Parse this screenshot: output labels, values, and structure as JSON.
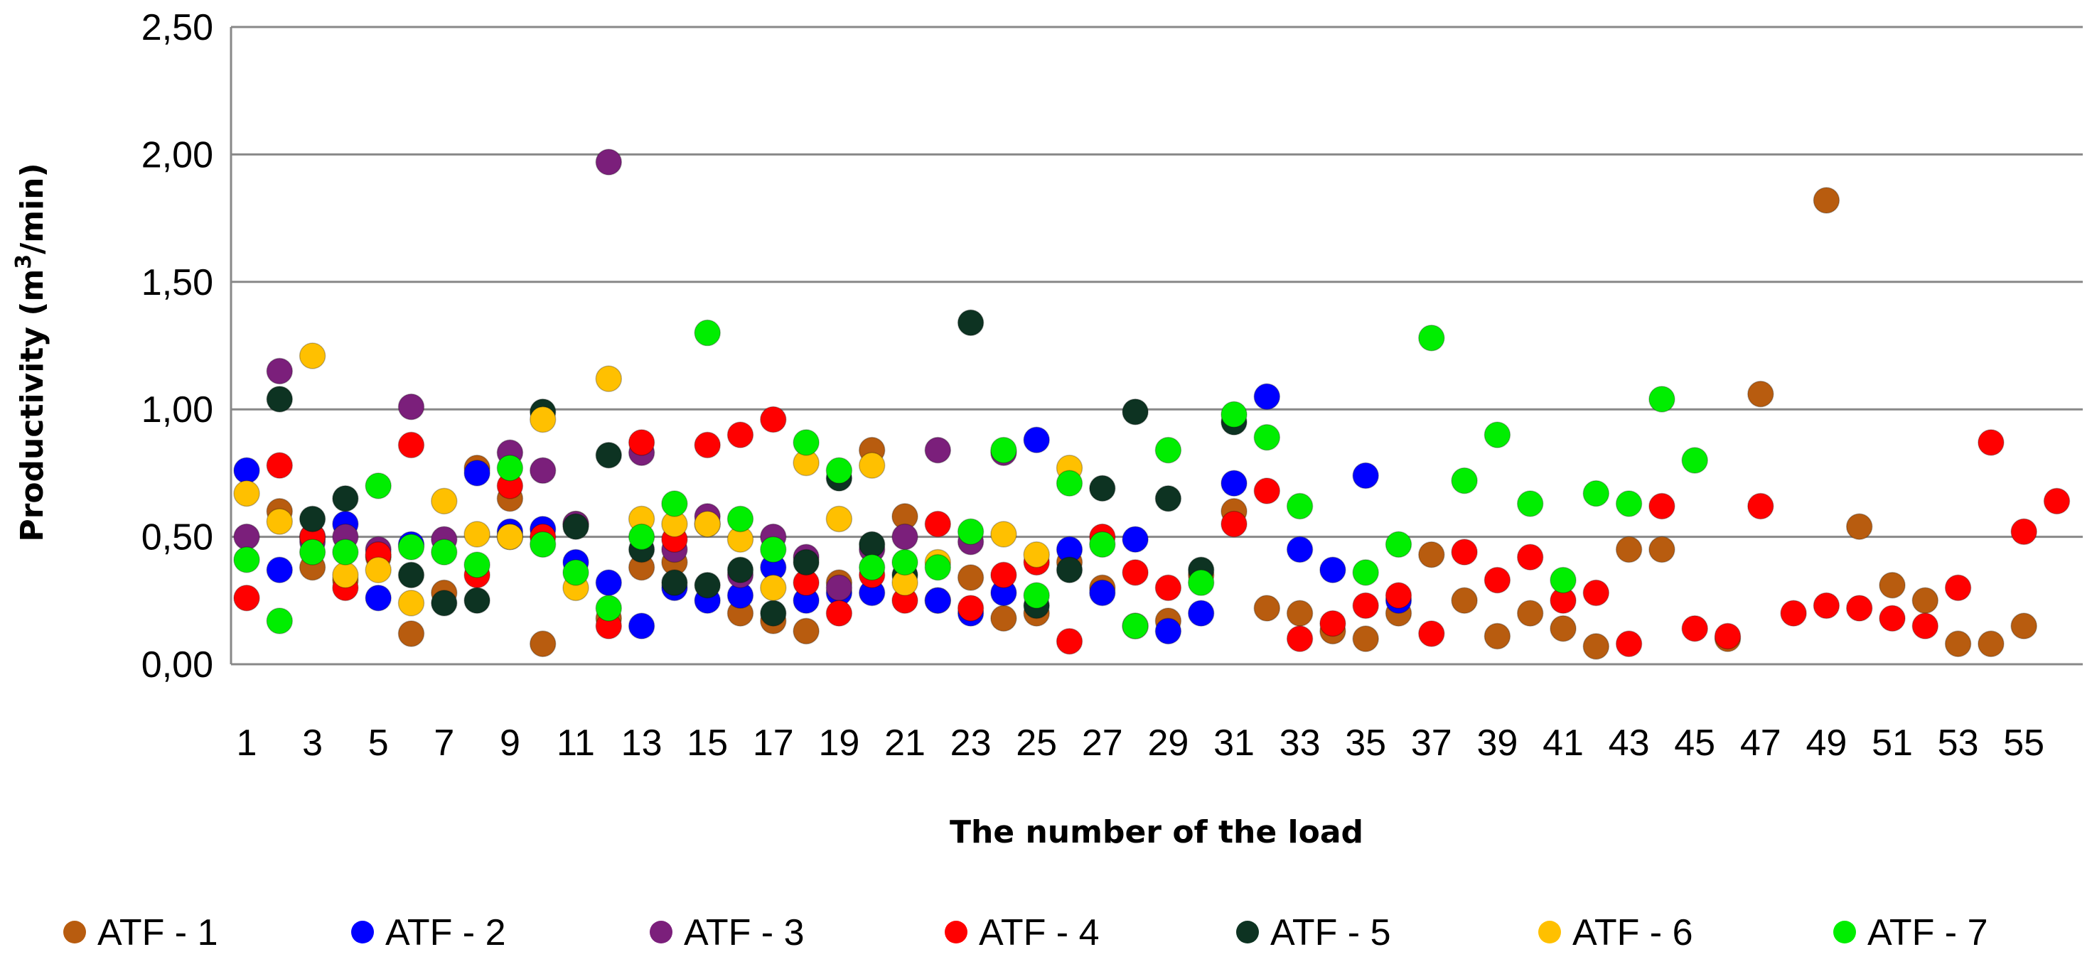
{
  "chart_data": {
    "type": "scatter",
    "title": "",
    "xlabel": "The number of the load",
    "ylabel": "Productivity (m3/min)",
    "ylabel_parts": {
      "pre": "Productivity (m",
      "sup": "3",
      "post": "/min)"
    },
    "xlim": [
      1,
      56
    ],
    "ylim": [
      0,
      2.5
    ],
    "x_ticks": [
      "1",
      "3",
      "5",
      "7",
      "9",
      "11",
      "13",
      "15",
      "17",
      "19",
      "21",
      "23",
      "25",
      "27",
      "29",
      "31",
      "33",
      "35",
      "37",
      "39",
      "41",
      "43",
      "45",
      "47",
      "49",
      "51",
      "53",
      "55"
    ],
    "y_ticks": [
      "0,00",
      "0,50",
      "1,00",
      "1,50",
      "2,00",
      "2,50"
    ],
    "grid": "horizontal",
    "legend_position": "bottom",
    "series": [
      {
        "name": "ATF - 1",
        "color": "#b85c0f",
        "points": [
          [
            2,
            0.6
          ],
          [
            3,
            0.38
          ],
          [
            4,
            0.33
          ],
          [
            5,
            0.42
          ],
          [
            6,
            0.12
          ],
          [
            7,
            0.28
          ],
          [
            8,
            0.77
          ],
          [
            9,
            0.65
          ],
          [
            10,
            0.08
          ],
          [
            11,
            0.55
          ],
          [
            12,
            0.18
          ],
          [
            13,
            0.38
          ],
          [
            14,
            0.4
          ],
          [
            15,
            0.55
          ],
          [
            16,
            0.2
          ],
          [
            17,
            0.17
          ],
          [
            18,
            0.13
          ],
          [
            19,
            0.32
          ],
          [
            20,
            0.84
          ],
          [
            21,
            0.58
          ],
          [
            22,
            0.25
          ],
          [
            23,
            0.34
          ],
          [
            24,
            0.18
          ],
          [
            25,
            0.2
          ],
          [
            26,
            0.4
          ],
          [
            27,
            0.3
          ],
          [
            28,
            0.15
          ],
          [
            29,
            0.17
          ],
          [
            30,
            0.35
          ],
          [
            31,
            0.6
          ],
          [
            32,
            0.22
          ],
          [
            33,
            0.2
          ],
          [
            34,
            0.13
          ],
          [
            35,
            0.1
          ],
          [
            36,
            0.2
          ],
          [
            37,
            0.43
          ],
          [
            38,
            0.25
          ],
          [
            39,
            0.11
          ],
          [
            40,
            0.2
          ],
          [
            41,
            0.14
          ],
          [
            42,
            0.07
          ],
          [
            43,
            0.45
          ],
          [
            44,
            0.45
          ],
          [
            46,
            0.1
          ],
          [
            47,
            1.06
          ],
          [
            49,
            1.82
          ],
          [
            50,
            0.54
          ],
          [
            51,
            0.31
          ],
          [
            52,
            0.25
          ],
          [
            53,
            0.08
          ],
          [
            54,
            0.08
          ],
          [
            55,
            0.15
          ]
        ]
      },
      {
        "name": "ATF - 2",
        "color": "#0000ff",
        "points": [
          [
            1,
            0.76
          ],
          [
            2,
            0.37
          ],
          [
            3,
            0.5
          ],
          [
            4,
            0.55
          ],
          [
            5,
            0.26
          ],
          [
            6,
            0.47
          ],
          [
            8,
            0.75
          ],
          [
            9,
            0.52
          ],
          [
            10,
            0.53
          ],
          [
            11,
            0.4
          ],
          [
            12,
            0.32
          ],
          [
            13,
            0.15
          ],
          [
            14,
            0.3
          ],
          [
            15,
            0.25
          ],
          [
            16,
            0.27
          ],
          [
            17,
            0.38
          ],
          [
            18,
            0.25
          ],
          [
            19,
            0.28
          ],
          [
            20,
            0.28
          ],
          [
            22,
            0.25
          ],
          [
            23,
            0.2
          ],
          [
            24,
            0.28
          ],
          [
            25,
            0.88
          ],
          [
            26,
            0.45
          ],
          [
            27,
            0.28
          ],
          [
            28,
            0.49
          ],
          [
            29,
            0.13
          ],
          [
            30,
            0.2
          ],
          [
            31,
            0.71
          ],
          [
            32,
            1.05
          ],
          [
            33,
            0.45
          ],
          [
            34,
            0.37
          ],
          [
            35,
            0.74
          ],
          [
            36,
            0.25
          ]
        ]
      },
      {
        "name": "ATF - 3",
        "color": "#7b1f7b",
        "points": [
          [
            1,
            0.5
          ],
          [
            2,
            1.15
          ],
          [
            3,
            0.48
          ],
          [
            4,
            0.5
          ],
          [
            5,
            0.45
          ],
          [
            6,
            1.01
          ],
          [
            7,
            0.49
          ],
          [
            9,
            0.83
          ],
          [
            10,
            0.76
          ],
          [
            11,
            0.55
          ],
          [
            12,
            1.97
          ],
          [
            13,
            0.83
          ],
          [
            14,
            0.45
          ],
          [
            15,
            0.58
          ],
          [
            16,
            0.35
          ],
          [
            17,
            0.5
          ],
          [
            18,
            0.42
          ],
          [
            19,
            0.3
          ],
          [
            20,
            0.45
          ],
          [
            21,
            0.5
          ],
          [
            22,
            0.84
          ],
          [
            23,
            0.48
          ],
          [
            24,
            0.83
          ]
        ]
      },
      {
        "name": "ATF - 4",
        "color": "#ff0000",
        "points": [
          [
            1,
            0.26
          ],
          [
            2,
            0.78
          ],
          [
            3,
            0.5
          ],
          [
            4,
            0.3
          ],
          [
            5,
            0.43
          ],
          [
            6,
            0.86
          ],
          [
            8,
            0.35
          ],
          [
            9,
            0.7
          ],
          [
            10,
            0.5
          ],
          [
            12,
            0.15
          ],
          [
            13,
            0.87
          ],
          [
            14,
            0.49
          ],
          [
            15,
            0.86
          ],
          [
            16,
            0.9
          ],
          [
            17,
            0.96
          ],
          [
            18,
            0.32
          ],
          [
            19,
            0.2
          ],
          [
            20,
            0.35
          ],
          [
            21,
            0.25
          ],
          [
            22,
            0.55
          ],
          [
            23,
            0.22
          ],
          [
            24,
            0.35
          ],
          [
            25,
            0.4
          ],
          [
            26,
            0.09
          ],
          [
            27,
            0.5
          ],
          [
            28,
            0.36
          ],
          [
            29,
            0.3
          ],
          [
            31,
            0.55
          ],
          [
            32,
            0.68
          ],
          [
            33,
            0.1
          ],
          [
            34,
            0.16
          ],
          [
            35,
            0.23
          ],
          [
            36,
            0.27
          ],
          [
            37,
            0.12
          ],
          [
            38,
            0.44
          ],
          [
            39,
            0.33
          ],
          [
            40,
            0.42
          ],
          [
            41,
            0.25
          ],
          [
            42,
            0.28
          ],
          [
            43,
            0.08
          ],
          [
            44,
            0.62
          ],
          [
            45,
            0.14
          ],
          [
            46,
            0.11
          ],
          [
            47,
            0.62
          ],
          [
            48,
            0.2
          ],
          [
            49,
            0.23
          ],
          [
            50,
            0.22
          ],
          [
            51,
            0.18
          ],
          [
            52,
            0.15
          ],
          [
            53,
            0.3
          ],
          [
            54,
            0.87
          ],
          [
            55,
            0.52
          ],
          [
            56,
            0.64
          ]
        ]
      },
      {
        "name": "ATF - 5",
        "color": "#0d3322",
        "points": [
          [
            2,
            1.04
          ],
          [
            3,
            0.57
          ],
          [
            4,
            0.65
          ],
          [
            6,
            0.35
          ],
          [
            7,
            0.24
          ],
          [
            8,
            0.25
          ],
          [
            9,
            0.5
          ],
          [
            10,
            0.99
          ],
          [
            11,
            0.54
          ],
          [
            12,
            0.82
          ],
          [
            13,
            0.45
          ],
          [
            14,
            0.32
          ],
          [
            15,
            0.31
          ],
          [
            16,
            0.37
          ],
          [
            17,
            0.2
          ],
          [
            18,
            0.4
          ],
          [
            19,
            0.73
          ],
          [
            20,
            0.47
          ],
          [
            21,
            0.35
          ],
          [
            23,
            1.34
          ],
          [
            25,
            0.23
          ],
          [
            26,
            0.37
          ],
          [
            27,
            0.69
          ],
          [
            28,
            0.99
          ],
          [
            29,
            0.65
          ],
          [
            30,
            0.37
          ],
          [
            31,
            0.95
          ]
        ]
      },
      {
        "name": "ATF - 6",
        "color": "#ffc000",
        "points": [
          [
            1,
            0.67
          ],
          [
            2,
            0.56
          ],
          [
            3,
            1.21
          ],
          [
            4,
            0.35
          ],
          [
            5,
            0.37
          ],
          [
            6,
            0.24
          ],
          [
            7,
            0.64
          ],
          [
            8,
            0.51
          ],
          [
            9,
            0.5
          ],
          [
            10,
            0.96
          ],
          [
            11,
            0.3
          ],
          [
            12,
            1.12
          ],
          [
            13,
            0.57
          ],
          [
            14,
            0.55
          ],
          [
            15,
            0.55
          ],
          [
            16,
            0.49
          ],
          [
            17,
            0.3
          ],
          [
            18,
            0.79
          ],
          [
            19,
            0.57
          ],
          [
            20,
            0.78
          ],
          [
            21,
            0.32
          ],
          [
            22,
            0.4
          ],
          [
            24,
            0.51
          ],
          [
            25,
            0.43
          ],
          [
            26,
            0.77
          ]
        ]
      },
      {
        "name": "ATF - 7",
        "color": "#00ee00",
        "points": [
          [
            1,
            0.41
          ],
          [
            2,
            0.17
          ],
          [
            3,
            0.44
          ],
          [
            4,
            0.44
          ],
          [
            5,
            0.7
          ],
          [
            6,
            0.46
          ],
          [
            7,
            0.44
          ],
          [
            8,
            0.39
          ],
          [
            9,
            0.77
          ],
          [
            10,
            0.47
          ],
          [
            11,
            0.36
          ],
          [
            12,
            0.22
          ],
          [
            13,
            0.5
          ],
          [
            14,
            0.63
          ],
          [
            15,
            1.3
          ],
          [
            16,
            0.57
          ],
          [
            17,
            0.45
          ],
          [
            18,
            0.87
          ],
          [
            19,
            0.76
          ],
          [
            20,
            0.38
          ],
          [
            21,
            0.4
          ],
          [
            22,
            0.38
          ],
          [
            23,
            0.52
          ],
          [
            24,
            0.84
          ],
          [
            25,
            0.27
          ],
          [
            26,
            0.71
          ],
          [
            27,
            0.47
          ],
          [
            28,
            0.15
          ],
          [
            29,
            0.84
          ],
          [
            30,
            0.32
          ],
          [
            31,
            0.98
          ],
          [
            32,
            0.89
          ],
          [
            33,
            0.62
          ],
          [
            35,
            0.36
          ],
          [
            36,
            0.47
          ],
          [
            37,
            1.28
          ],
          [
            38,
            0.72
          ],
          [
            39,
            0.9
          ],
          [
            40,
            0.63
          ],
          [
            41,
            0.33
          ],
          [
            42,
            0.67
          ],
          [
            43,
            0.63
          ],
          [
            44,
            1.04
          ],
          [
            45,
            0.8
          ]
        ]
      }
    ]
  }
}
